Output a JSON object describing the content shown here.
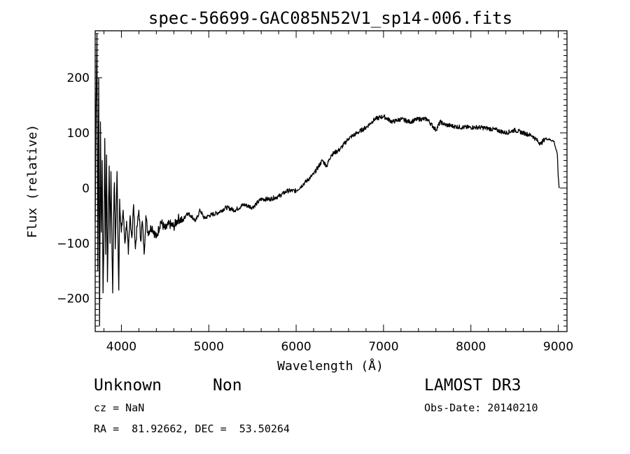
{
  "chart_data": {
    "type": "line",
    "title": "spec-56699-GAC085N52V1_sp14-006.fits",
    "xlabel": "Wavelength (Å)",
    "ylabel": "Flux (relative)",
    "xlim": [
      3700,
      9100
    ],
    "ylim": [
      -260,
      285
    ],
    "x_ticks": [
      4000,
      5000,
      6000,
      7000,
      8000,
      9000
    ],
    "y_ticks": [
      -200,
      -100,
      0,
      100,
      200
    ],
    "grid": false,
    "line_color": "#000000",
    "series": [
      {
        "x": [
          3700,
          3710,
          3720,
          3730,
          3740,
          3750,
          3760,
          3770,
          3780,
          3790,
          3800,
          3810,
          3820,
          3830,
          3840,
          3850,
          3860,
          3870,
          3880,
          3890,
          3900,
          3910,
          3920,
          3930,
          3940,
          3950,
          3960,
          3970,
          3980,
          3990,
          4000,
          4020,
          4040,
          4060,
          4080,
          4100,
          4120,
          4140,
          4160,
          4180,
          4200,
          4220,
          4240,
          4260,
          4280,
          4300,
          4350,
          4400,
          4450,
          4500,
          4550,
          4600,
          4650,
          4700,
          4750,
          4800,
          4850,
          4900,
          4950,
          5000,
          5100,
          5200,
          5300,
          5400,
          5500,
          5600,
          5700,
          5800,
          5900,
          6000,
          6100,
          6200,
          6300,
          6350,
          6400,
          6500,
          6600,
          6700,
          6800,
          6900,
          7000,
          7100,
          7200,
          7300,
          7400,
          7500,
          7600,
          7650,
          7700,
          7800,
          7900,
          8000,
          8100,
          8200,
          8300,
          8400,
          8500,
          8600,
          8700,
          8800,
          8850,
          8900,
          8950,
          8990,
          9000,
          9010
        ],
        "y": [
          -60,
          150,
          280,
          -150,
          200,
          -250,
          120,
          -80,
          50,
          -190,
          -90,
          90,
          -120,
          60,
          -170,
          -60,
          40,
          -100,
          30,
          -80,
          -190,
          -50,
          10,
          -110,
          -40,
          30,
          -90,
          -185,
          -20,
          -60,
          -80,
          -40,
          -100,
          -60,
          -120,
          -50,
          -90,
          -30,
          -110,
          -70,
          -40,
          -95,
          -60,
          -120,
          -50,
          -80,
          -70,
          -90,
          -60,
          -75,
          -65,
          -70,
          -55,
          -60,
          -45,
          -50,
          -60,
          -40,
          -55,
          -50,
          -45,
          -35,
          -40,
          -30,
          -35,
          -20,
          -20,
          -15,
          -5,
          -5,
          10,
          25,
          50,
          40,
          60,
          70,
          90,
          100,
          110,
          125,
          130,
          120,
          125,
          120,
          125,
          125,
          105,
          120,
          115,
          112,
          110,
          110,
          110,
          108,
          105,
          100,
          105,
          100,
          95,
          80,
          90,
          88,
          85,
          60,
          20,
          0
        ]
      }
    ]
  },
  "info": {
    "object_class": "Unknown",
    "subclass": "Non",
    "survey": "LAMOST DR3",
    "cz": "cz = NaN",
    "obs_date": "Obs-Date: 20140210",
    "coords": "RA =  81.92662, DEC =  53.50264"
  }
}
